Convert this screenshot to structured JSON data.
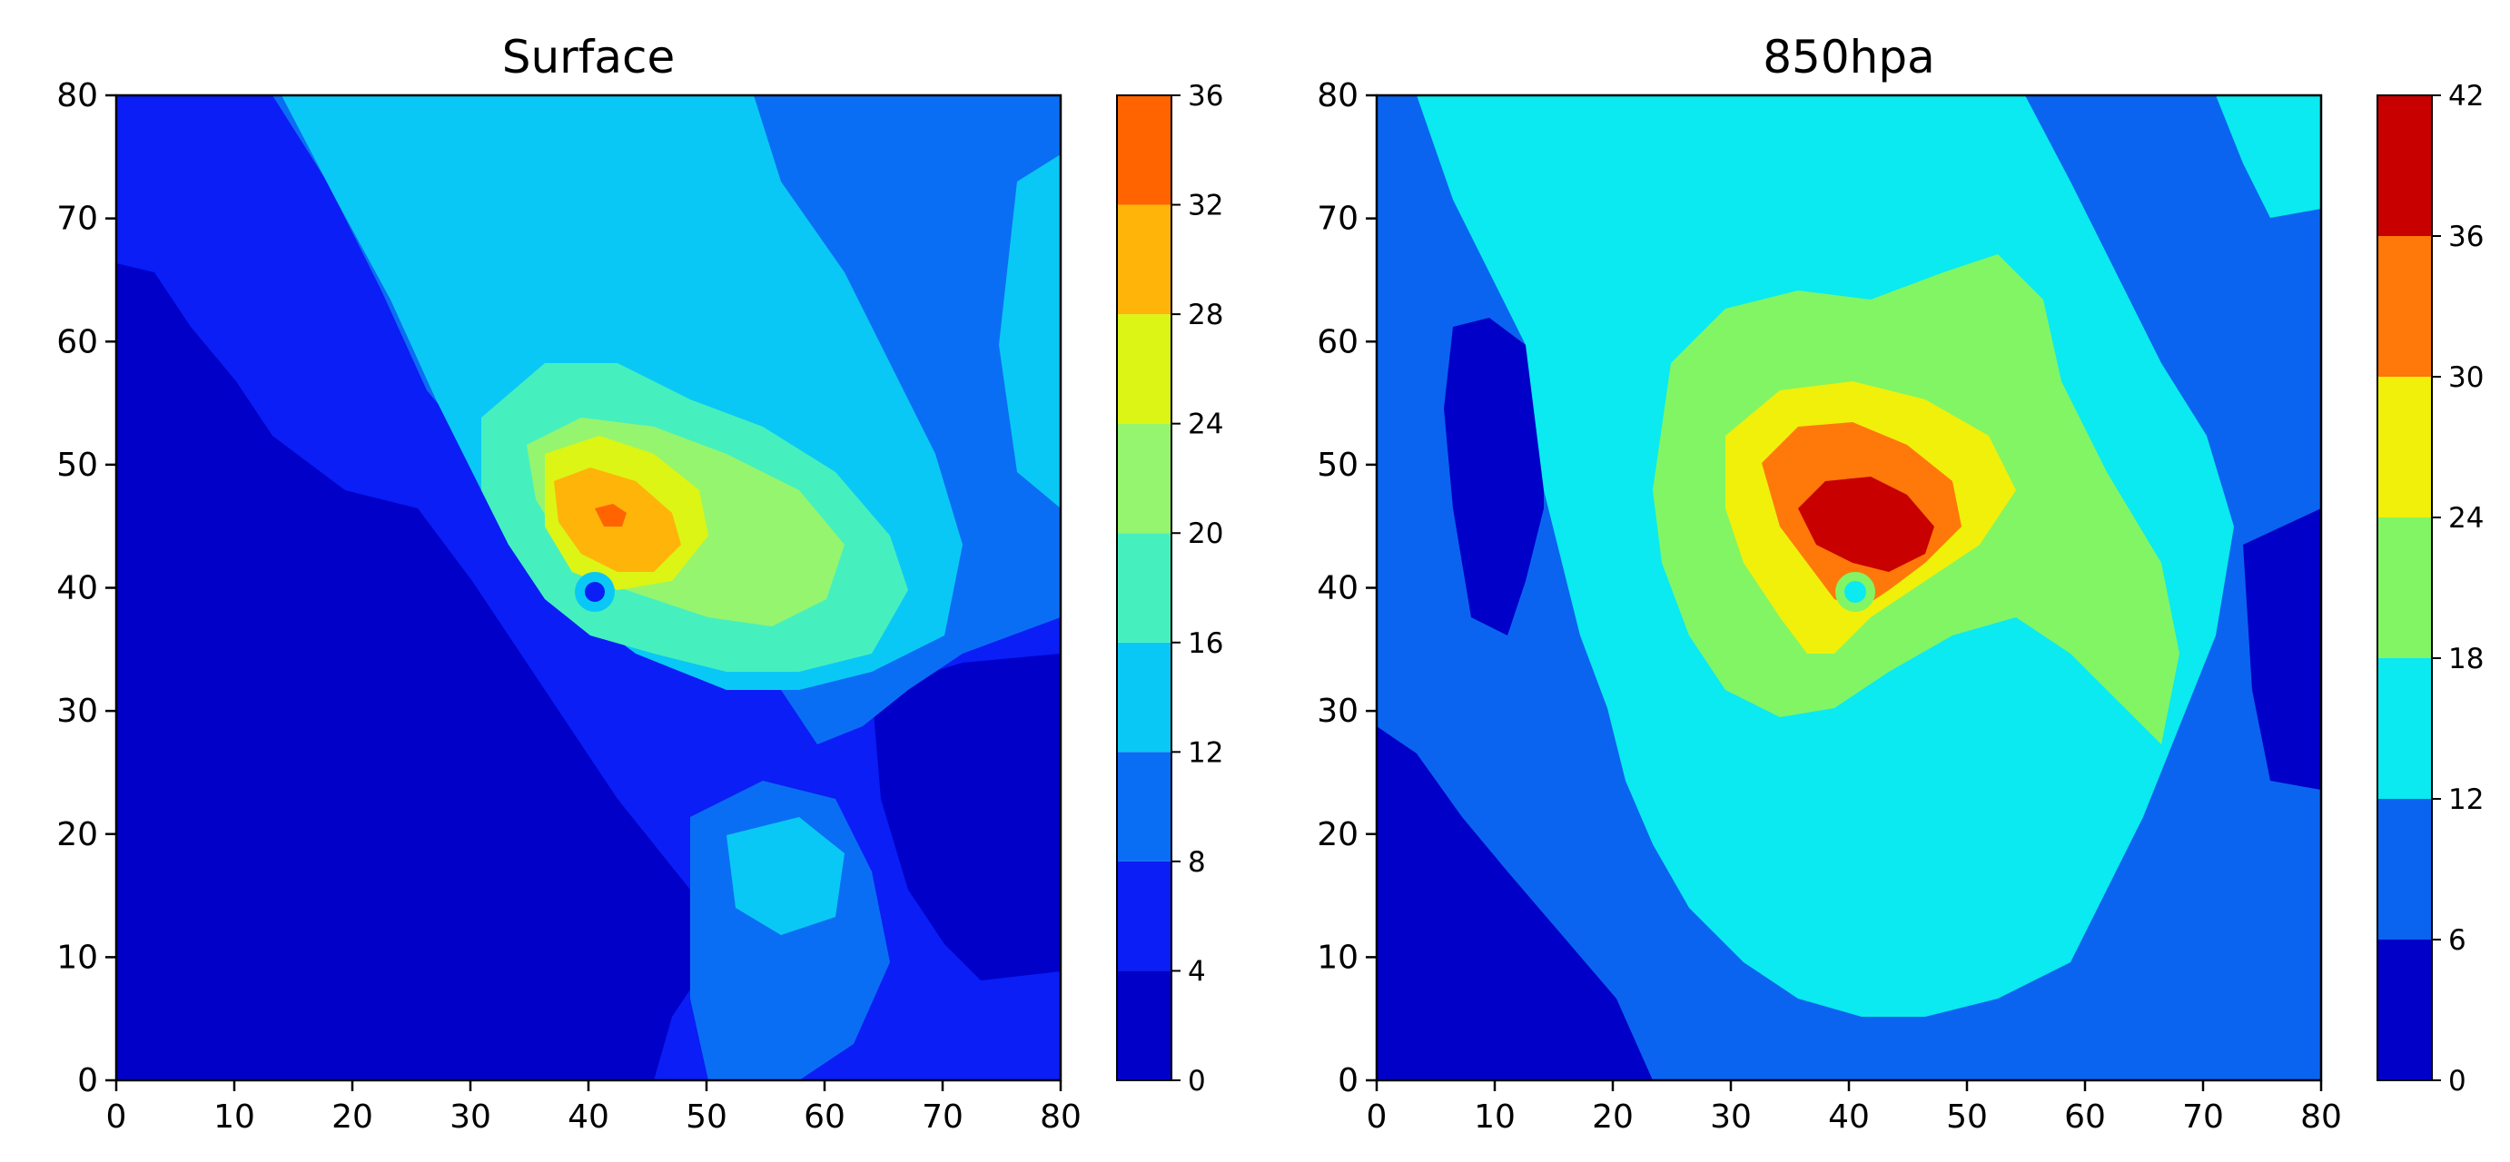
{
  "chart_data": [
    {
      "type": "contour",
      "title": "Surface",
      "xlim": [
        0,
        80
      ],
      "ylim": [
        0,
        80
      ],
      "x_ticks": [
        0,
        10,
        20,
        30,
        40,
        50,
        60,
        70,
        80
      ],
      "y_ticks": [
        0,
        10,
        20,
        30,
        40,
        50,
        60,
        70,
        80
      ],
      "colorbar": {
        "levels": [
          0,
          4,
          8,
          12,
          16,
          20,
          24,
          28,
          32,
          36
        ],
        "colors": [
          "#0000c8",
          "#0a1ef5",
          "#0a6ef5",
          "#0ac8f5",
          "#46f0be",
          "#96f56e",
          "#dcf514",
          "#ffb40a",
          "#ff6400"
        ]
      },
      "peak": {
        "x": 41,
        "y": 45,
        "value": 34
      },
      "eye": {
        "x": 40,
        "y": 39.5,
        "value": 6
      }
    },
    {
      "type": "contour",
      "title": "850hpa",
      "xlim": [
        0,
        80
      ],
      "ylim": [
        0,
        80
      ],
      "x_ticks": [
        0,
        10,
        20,
        30,
        40,
        50,
        60,
        70,
        80
      ],
      "y_ticks": [
        0,
        10,
        20,
        30,
        40,
        50,
        60,
        70,
        80
      ],
      "colorbar": {
        "levels": [
          0,
          6,
          12,
          18,
          24,
          30,
          36,
          42
        ],
        "colors": [
          "#0000c8",
          "#0a64f0",
          "#0aeaf0",
          "#82f564",
          "#f0f00a",
          "#ff780a",
          "#c80000"
        ]
      },
      "peak": {
        "x": 41,
        "y": 45,
        "value": 39
      },
      "eye": {
        "x": 40,
        "y": 39.5,
        "value": 14
      }
    }
  ]
}
